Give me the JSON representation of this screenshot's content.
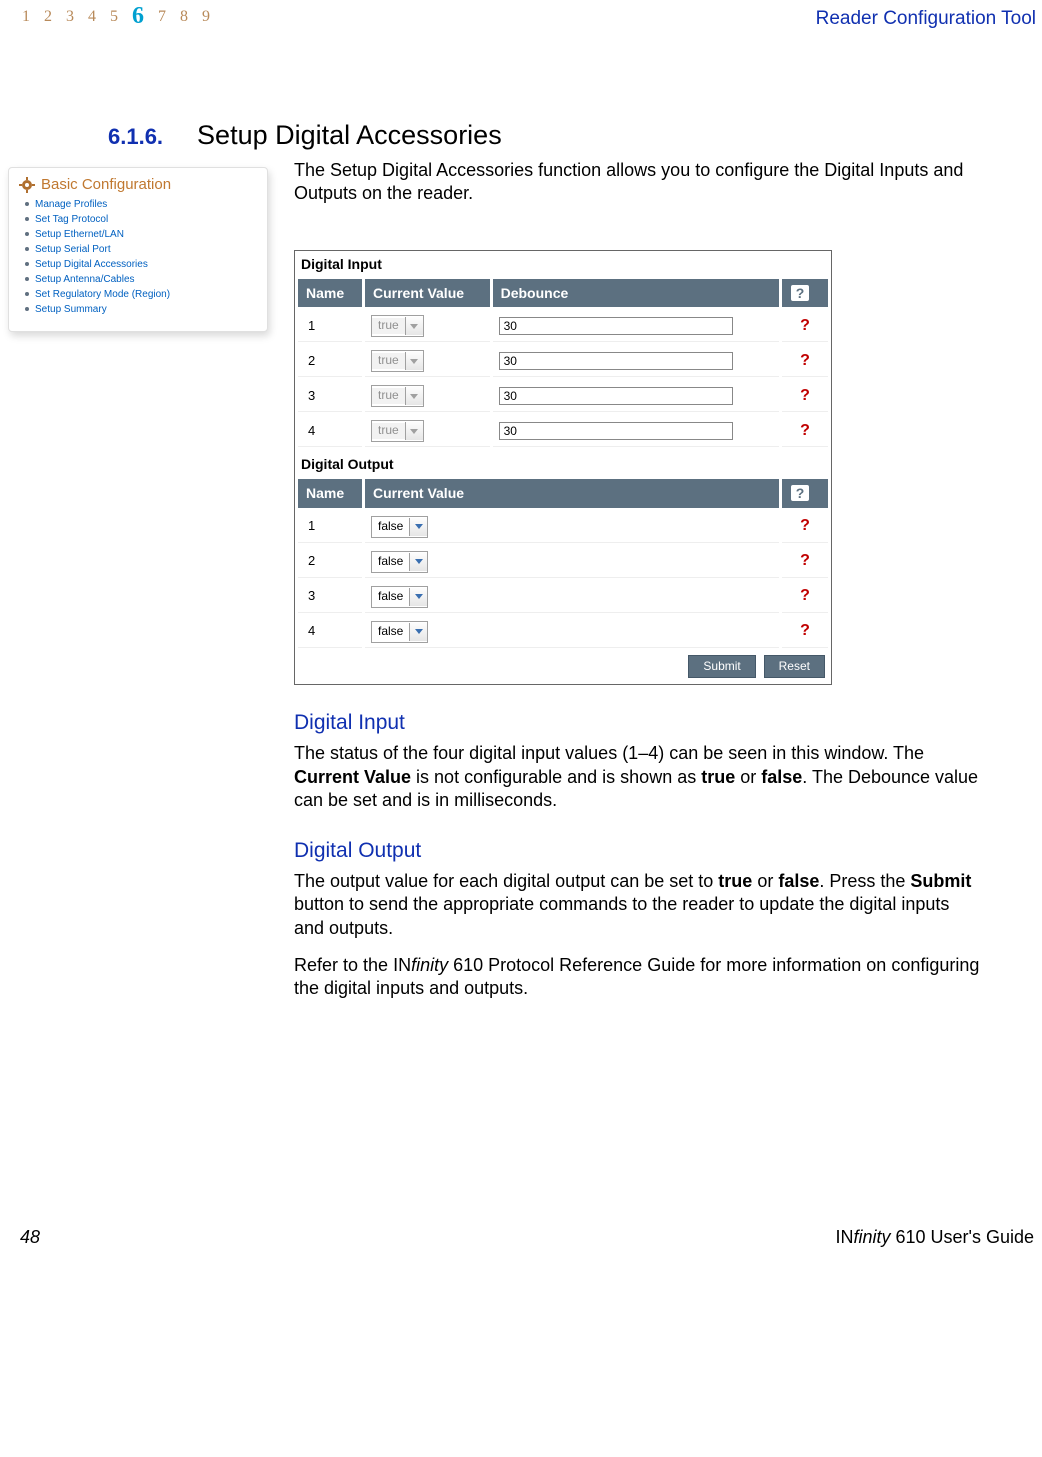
{
  "header": {
    "chapters": [
      "1",
      "2",
      "3",
      "4",
      "5",
      "6",
      "7",
      "8",
      "9"
    ],
    "active_chapter": "6",
    "title_right": "Reader Configuration Tool"
  },
  "section": {
    "number": "6.1.6.",
    "title": "Setup Digital Accessories",
    "intro": "The Setup Digital Accessories function allows you to configure the Digital Inputs and Outputs on the reader."
  },
  "sidebar": {
    "title": "Basic Configuration",
    "items": [
      "Manage Profiles",
      "Set Tag Protocol",
      "Setup Ethernet/LAN",
      "Setup Serial Port",
      "Setup Digital Accessories",
      "Setup Antenna/Cables",
      "Set Regulatory Mode (Region)",
      "Setup Summary"
    ]
  },
  "shot": {
    "input": {
      "label": "Digital Input",
      "headers": {
        "name": "Name",
        "current": "Current Value",
        "debounce": "Debounce"
      },
      "rows": [
        {
          "name": "1",
          "current": "true",
          "debounce": "30"
        },
        {
          "name": "2",
          "current": "true",
          "debounce": "30"
        },
        {
          "name": "3",
          "current": "true",
          "debounce": "30"
        },
        {
          "name": "4",
          "current": "true",
          "debounce": "30"
        }
      ]
    },
    "output": {
      "label": "Digital Output",
      "headers": {
        "name": "Name",
        "current": "Current Value"
      },
      "rows": [
        {
          "name": "1",
          "current": "false"
        },
        {
          "name": "2",
          "current": "false"
        },
        {
          "name": "3",
          "current": "false"
        },
        {
          "name": "4",
          "current": "false"
        }
      ]
    },
    "buttons": {
      "submit": "Submit",
      "reset": "Reset"
    },
    "help_glyph": "?"
  },
  "digital_input_section": {
    "heading": "Digital Input",
    "text_parts": {
      "p1a": "The status of the four digital input values (1–4) can be seen in this window. The ",
      "p1b": "Current Value",
      "p1c": " is not configurable and is shown as ",
      "p1d": "true",
      "p1e": " or ",
      "p1f": "false",
      "p1g": ". The Debounce value can be set and is in milliseconds."
    }
  },
  "digital_output_section": {
    "heading": "Digital Output",
    "text_parts": {
      "p1a": "The output value for each digital output can be set to ",
      "p1b": "true",
      "p1c": " or ",
      "p1d": "false",
      "p1e": ". Press the ",
      "p1f": "Submit",
      "p1g": " button to send the appropriate commands to the reader to update the digital inputs and outputs."
    },
    "text2_parts": {
      "a": "Refer to the ",
      "b": "IN",
      "c": "finity",
      "d": " 610 Protocol Reference Guide",
      "e": " for more information on configuring the digital inputs and outputs."
    }
  },
  "footer": {
    "page": "48",
    "title_in": "IN",
    "title_finity": "finity",
    "title_rest": " 610 User's Guide"
  }
}
